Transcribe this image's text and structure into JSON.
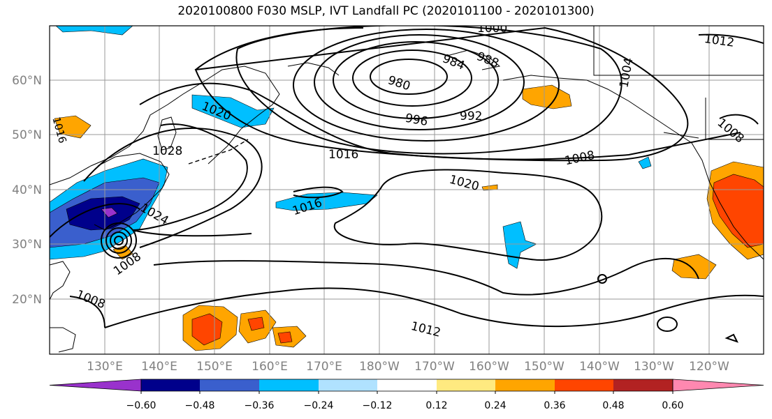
{
  "title": "2020100800 F030 MSLP, IVT Landfall PC (2020101100 - 2020101300)",
  "map": {
    "lat_labels": [
      "60°N",
      "50°N",
      "40°N",
      "30°N",
      "20°N"
    ],
    "lon_labels": [
      "130°E",
      "140°E",
      "150°E",
      "160°E",
      "170°E",
      "180°W",
      "170°W",
      "160°W",
      "150°W",
      "140°W",
      "130°W",
      "120°W"
    ]
  },
  "isobars": {
    "labels": [
      {
        "text": "1000",
        "value": 1000
      },
      {
        "text": "984",
        "value": 984
      },
      {
        "text": "988",
        "value": 988
      },
      {
        "text": "980",
        "value": 980
      },
      {
        "text": "996",
        "value": 996
      },
      {
        "text": "992",
        "value": 992
      },
      {
        "text": "1004",
        "value": 1004
      },
      {
        "text": "1012",
        "value": 1012
      },
      {
        "text": "1008",
        "value": 1008
      },
      {
        "text": "1016",
        "value": 1016
      },
      {
        "text": "1020",
        "value": 1020
      },
      {
        "text": "1016",
        "value": 1016
      },
      {
        "text": "1020",
        "value": 1020
      },
      {
        "text": "1008",
        "value": 1008
      },
      {
        "text": "1028",
        "value": 1028
      },
      {
        "text": "1024",
        "value": 1024
      },
      {
        "text": "1008",
        "value": 1008
      },
      {
        "text": "1008",
        "value": 1008
      },
      {
        "text": "1012",
        "value": 1012
      },
      {
        "text": "1016",
        "value": 1016
      }
    ]
  },
  "colorbar": {
    "ticks": [
      "−0.60",
      "−0.48",
      "−0.36",
      "−0.24",
      "−0.12",
      "0.12",
      "0.24",
      "0.36",
      "0.48",
      "0.60"
    ],
    "colors": [
      "#9932cc",
      "#00008b",
      "#3a5fcd",
      "#00bfff",
      "#b0e2ff",
      "#ffffff",
      "#ffea80",
      "#ffa500",
      "#ff4500",
      "#b22222",
      "#ff88b0"
    ]
  }
}
